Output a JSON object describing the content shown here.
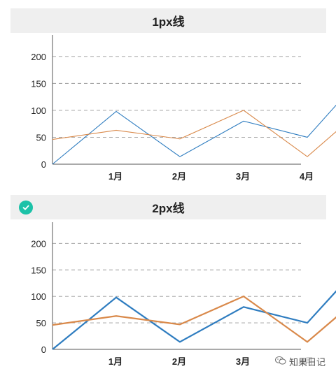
{
  "chart_data": [
    {
      "type": "line",
      "title": "1px线",
      "categories": [
        "1月",
        "2月",
        "3月",
        "4月"
      ],
      "ylim": [
        0,
        240
      ],
      "yticks": [
        0,
        50,
        100,
        150,
        200
      ],
      "grid": true,
      "series": [
        {
          "color": "#2f7dc0",
          "values": [
            {
              "x": 0,
              "y": 0
            },
            {
              "x": 1,
              "y": 98
            },
            {
              "x": 2,
              "y": 14
            },
            {
              "x": 3,
              "y": 80
            },
            {
              "x": 4,
              "y": 50
            },
            {
              "x": 4.85,
              "y": 162
            }
          ]
        },
        {
          "color": "#d9894a",
          "values": [
            {
              "x": 0,
              "y": 46
            },
            {
              "x": 1,
              "y": 63
            },
            {
              "x": 2,
              "y": 47
            },
            {
              "x": 3,
              "y": 100
            },
            {
              "x": 4,
              "y": 14
            },
            {
              "x": 4.7,
              "y": 86
            }
          ]
        }
      ]
    },
    {
      "type": "line",
      "title": "2px线",
      "categories": [
        "1月",
        "2月",
        "3月",
        "4月"
      ],
      "ylim": [
        0,
        240
      ],
      "yticks": [
        0,
        50,
        100,
        150,
        200
      ],
      "grid": true,
      "series": [
        {
          "color": "#2f7dc0",
          "values": [
            {
              "x": 0,
              "y": 0
            },
            {
              "x": 1,
              "y": 98
            },
            {
              "x": 2,
              "y": 14
            },
            {
              "x": 3,
              "y": 80
            },
            {
              "x": 4,
              "y": 50
            },
            {
              "x": 4.85,
              "y": 162
            }
          ]
        },
        {
          "color": "#d9894a",
          "values": [
            {
              "x": 0,
              "y": 46
            },
            {
              "x": 1,
              "y": 63
            },
            {
              "x": 2,
              "y": 47
            },
            {
              "x": 3,
              "y": 100
            },
            {
              "x": 4,
              "y": 14
            },
            {
              "x": 4.7,
              "y": 86
            }
          ]
        }
      ]
    }
  ],
  "badge": {
    "icon": "check-circle-icon",
    "color": "#1cc2a8"
  },
  "watermark": {
    "text": "知果日记",
    "icon": "wechat-icon"
  }
}
